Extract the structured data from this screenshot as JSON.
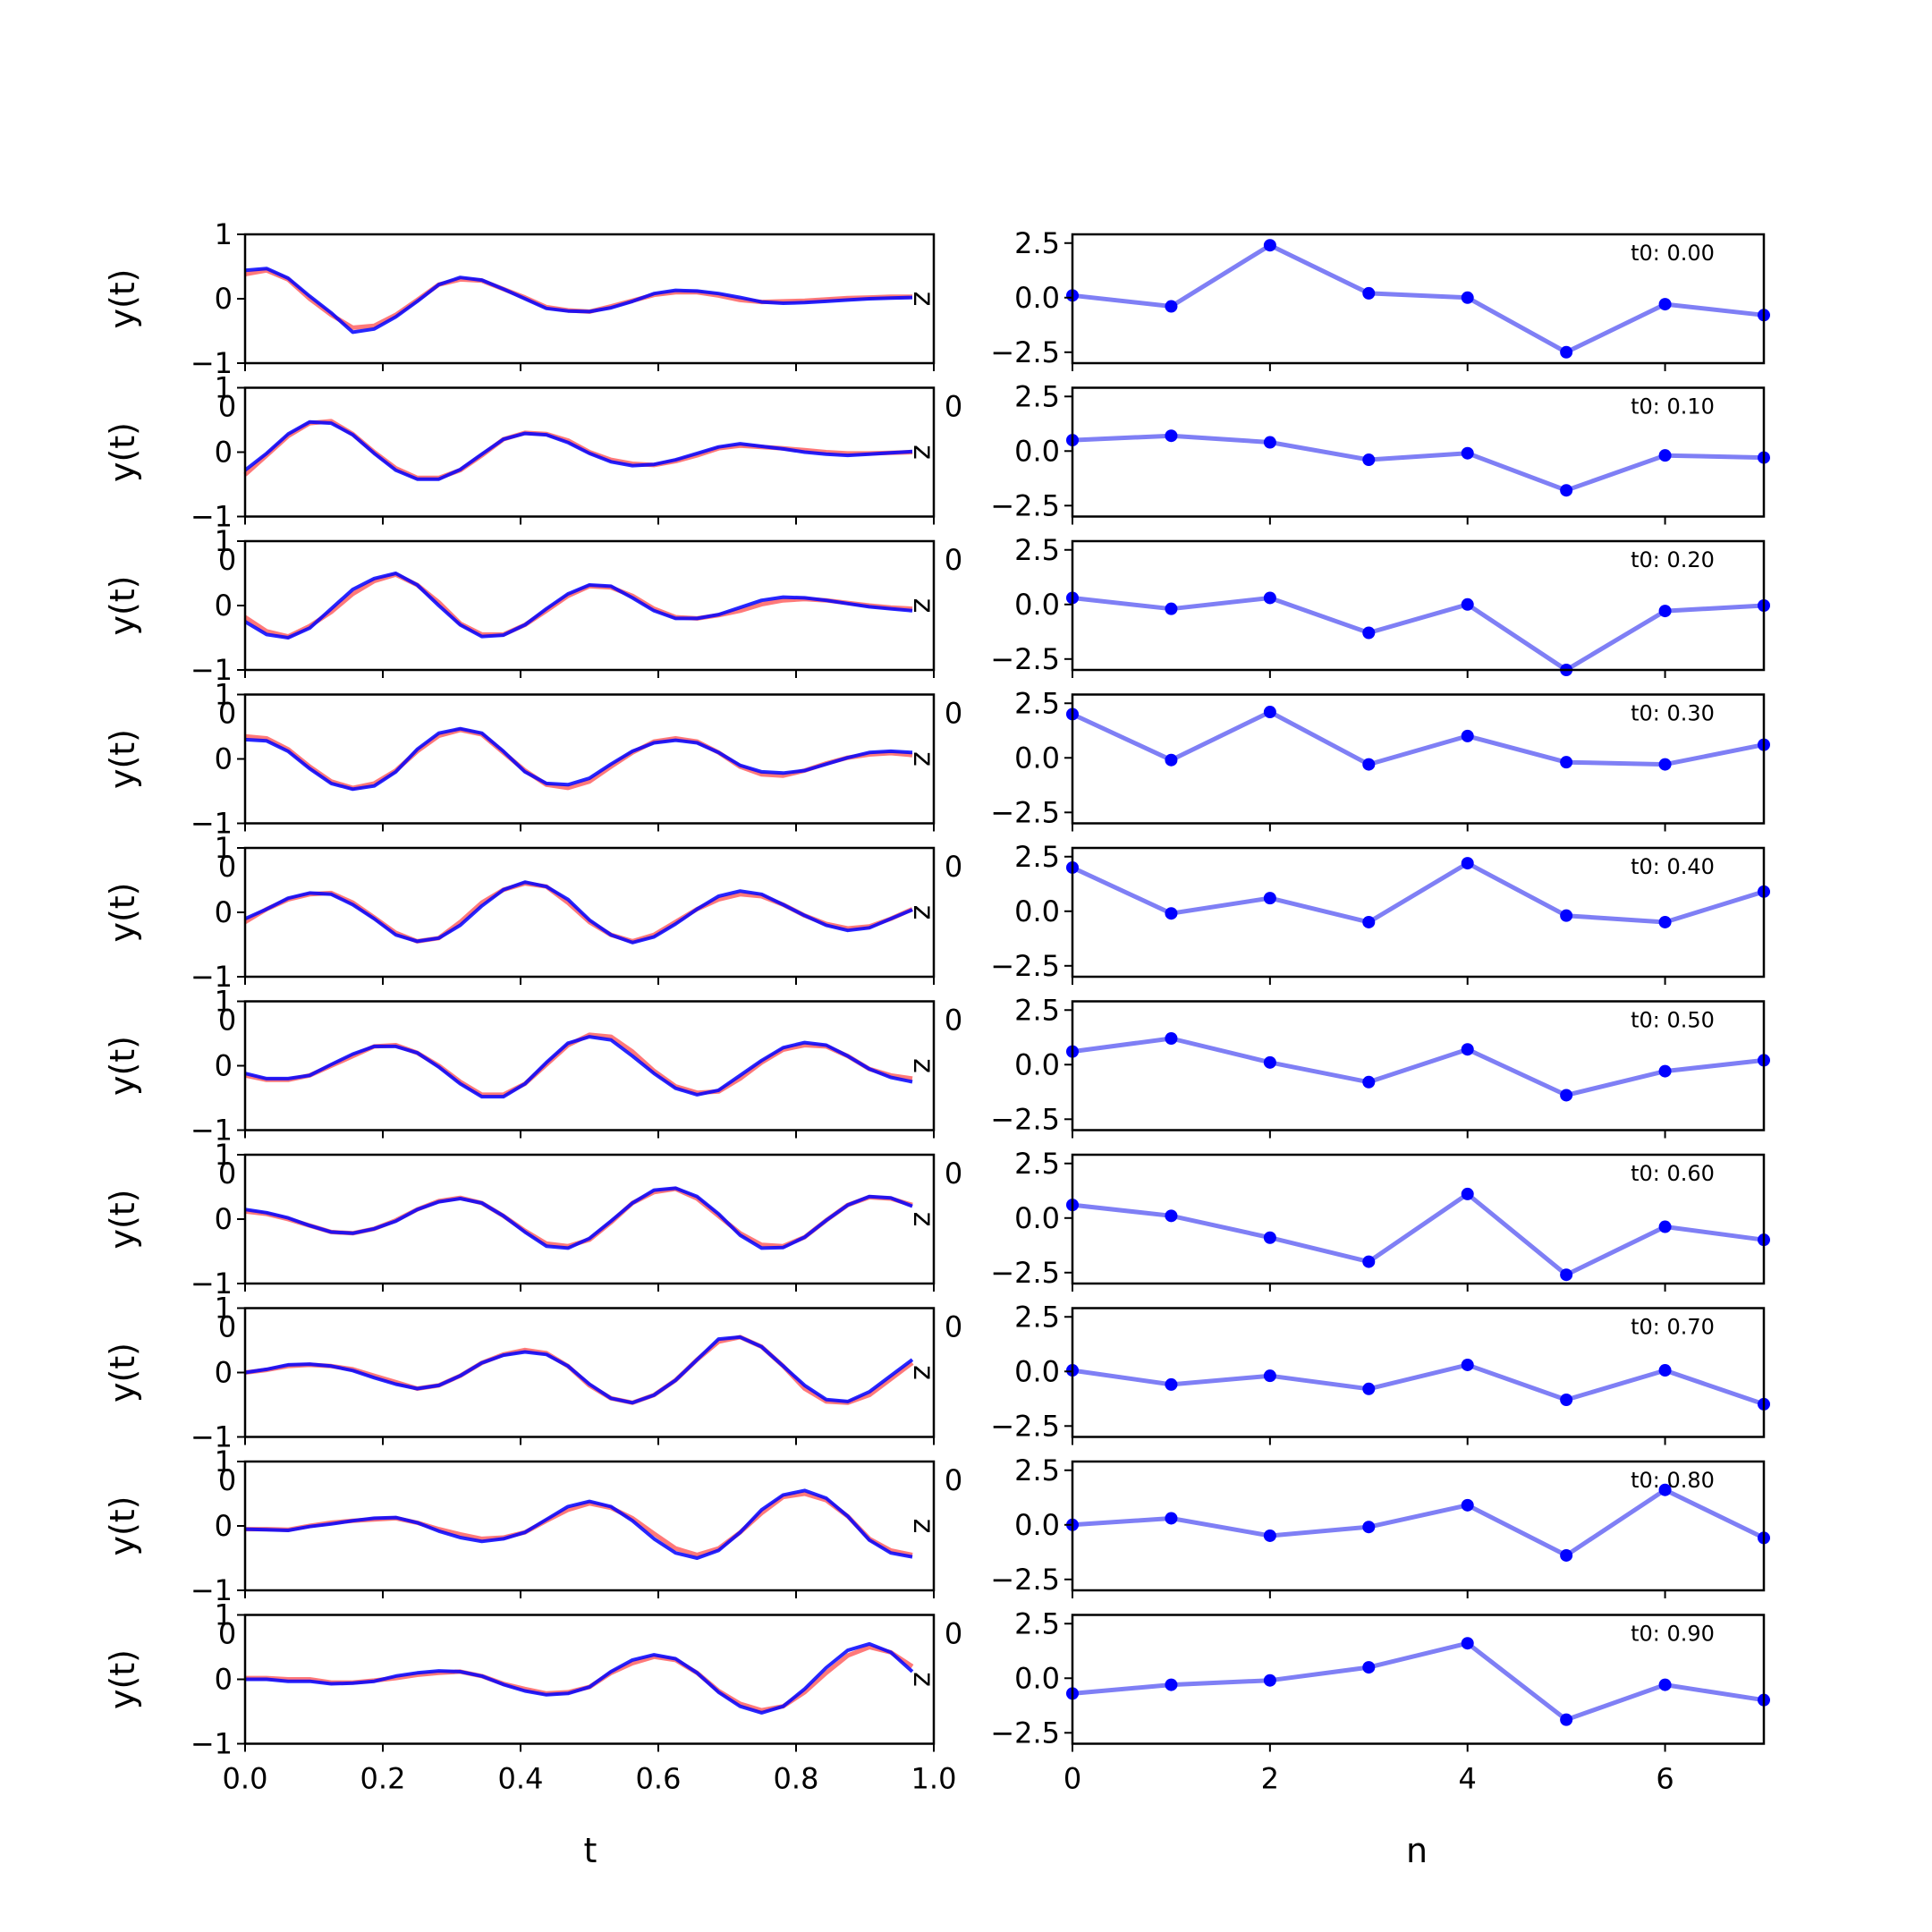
{
  "chart_data": [
    {
      "type": "line",
      "xlabel": "t",
      "ylabel": "y(t)",
      "xlim": [
        0,
        1
      ],
      "ylim": [
        -1,
        1
      ],
      "x_ticks": [
        "0.0",
        "0.2",
        "0.4",
        "0.6",
        "0.8",
        "1.0"
      ],
      "y_ticks": [
        "−1",
        "0",
        "1"
      ],
      "overlap_tick_label": "0",
      "right_edge_label": "z",
      "grid": false,
      "colors": {
        "true": "#ff6a6a",
        "reconstruction": "#0000ff"
      },
      "x": [
        0.0,
        0.0313,
        0.0625,
        0.0938,
        0.125,
        0.1563,
        0.1875,
        0.2188,
        0.25,
        0.2813,
        0.3125,
        0.3438,
        0.375,
        0.4063,
        0.4375,
        0.4688,
        0.5,
        0.5313,
        0.5625,
        0.5938,
        0.625,
        0.6563,
        0.6875,
        0.7188,
        0.75,
        0.7813,
        0.8125,
        0.8438,
        0.875,
        0.9063,
        0.9375,
        0.9688
      ],
      "panels": [
        {
          "true": [
            0.38,
            0.44,
            0.3,
            0.0,
            -0.25,
            -0.45,
            -0.42,
            -0.25,
            -0.02,
            0.22,
            0.3,
            0.28,
            0.15,
            0.02,
            -0.13,
            -0.18,
            -0.2,
            -0.12,
            -0.03,
            0.06,
            0.1,
            0.1,
            0.05,
            -0.02,
            -0.05,
            -0.04,
            -0.03,
            -0.01,
            0.01,
            0.02,
            0.03,
            0.03
          ],
          "recon": [
            0.44,
            0.47,
            0.32,
            0.04,
            -0.22,
            -0.52,
            -0.47,
            -0.28,
            -0.04,
            0.22,
            0.33,
            0.29,
            0.15,
            0.0,
            -0.15,
            -0.19,
            -0.2,
            -0.14,
            -0.04,
            0.08,
            0.13,
            0.12,
            0.08,
            0.02,
            -0.05,
            -0.07,
            -0.06,
            -0.04,
            -0.02,
            0.0,
            0.01,
            0.02
          ]
        },
        {
          "true": [
            -0.35,
            -0.05,
            0.25,
            0.45,
            0.48,
            0.28,
            0.0,
            -0.25,
            -0.4,
            -0.4,
            -0.28,
            -0.05,
            0.2,
            0.3,
            0.28,
            0.18,
            0.0,
            -0.12,
            -0.18,
            -0.2,
            -0.14,
            -0.05,
            0.06,
            0.1,
            0.08,
            0.06,
            0.03,
            0.0,
            -0.02,
            -0.02,
            -0.01,
            0.0
          ],
          "recon": [
            -0.28,
            -0.02,
            0.28,
            0.47,
            0.45,
            0.27,
            -0.02,
            -0.28,
            -0.42,
            -0.42,
            -0.27,
            -0.03,
            0.2,
            0.29,
            0.27,
            0.15,
            -0.02,
            -0.15,
            -0.21,
            -0.19,
            -0.12,
            -0.02,
            0.08,
            0.13,
            0.09,
            0.05,
            0.0,
            -0.03,
            -0.05,
            -0.03,
            -0.01,
            0.01
          ]
        },
        {
          "true": [
            -0.18,
            -0.4,
            -0.48,
            -0.32,
            -0.1,
            0.18,
            0.38,
            0.48,
            0.32,
            0.05,
            -0.28,
            -0.45,
            -0.45,
            -0.3,
            -0.08,
            0.15,
            0.3,
            0.28,
            0.15,
            -0.05,
            -0.18,
            -0.2,
            -0.15,
            -0.08,
            0.02,
            0.08,
            0.1,
            0.08,
            0.04,
            0.0,
            -0.03,
            -0.05
          ],
          "recon": [
            -0.25,
            -0.45,
            -0.5,
            -0.35,
            -0.05,
            0.25,
            0.42,
            0.5,
            0.32,
            0.0,
            -0.3,
            -0.48,
            -0.46,
            -0.3,
            -0.05,
            0.18,
            0.32,
            0.3,
            0.12,
            -0.08,
            -0.2,
            -0.2,
            -0.14,
            -0.03,
            0.08,
            0.13,
            0.12,
            0.08,
            0.03,
            -0.02,
            -0.05,
            -0.08
          ]
        },
        {
          "true": [
            0.35,
            0.32,
            0.15,
            -0.12,
            -0.35,
            -0.45,
            -0.38,
            -0.18,
            0.12,
            0.36,
            0.45,
            0.38,
            0.1,
            -0.18,
            -0.4,
            -0.45,
            -0.35,
            -0.12,
            0.1,
            0.27,
            0.32,
            0.27,
            0.1,
            -0.12,
            -0.24,
            -0.26,
            -0.18,
            -0.07,
            0.02,
            0.07,
            0.09,
            0.06
          ],
          "recon": [
            0.3,
            0.28,
            0.12,
            -0.15,
            -0.38,
            -0.47,
            -0.42,
            -0.2,
            0.15,
            0.4,
            0.47,
            0.4,
            0.12,
            -0.2,
            -0.38,
            -0.4,
            -0.3,
            -0.08,
            0.12,
            0.25,
            0.29,
            0.25,
            0.1,
            -0.1,
            -0.2,
            -0.22,
            -0.18,
            -0.08,
            0.02,
            0.1,
            0.12,
            0.1
          ]
        },
        {
          "true": [
            -0.15,
            0.05,
            0.2,
            0.28,
            0.3,
            0.15,
            -0.08,
            -0.32,
            -0.45,
            -0.4,
            -0.15,
            0.15,
            0.35,
            0.45,
            0.4,
            0.15,
            -0.15,
            -0.35,
            -0.45,
            -0.35,
            -0.15,
            0.05,
            0.2,
            0.28,
            0.25,
            0.12,
            -0.05,
            -0.18,
            -0.25,
            -0.22,
            -0.1,
            0.05
          ],
          "recon": [
            -0.1,
            0.05,
            0.22,
            0.3,
            0.28,
            0.12,
            -0.1,
            -0.35,
            -0.45,
            -0.4,
            -0.2,
            0.1,
            0.35,
            0.47,
            0.4,
            0.2,
            -0.12,
            -0.35,
            -0.47,
            -0.38,
            -0.18,
            0.05,
            0.25,
            0.33,
            0.28,
            0.12,
            -0.05,
            -0.2,
            -0.28,
            -0.24,
            -0.1,
            0.04
          ]
        },
        {
          "true": [
            -0.15,
            -0.22,
            -0.22,
            -0.15,
            0.0,
            0.15,
            0.3,
            0.32,
            0.2,
            0.0,
            -0.25,
            -0.45,
            -0.45,
            -0.28,
            0.02,
            0.32,
            0.48,
            0.45,
            0.22,
            -0.08,
            -0.32,
            -0.42,
            -0.4,
            -0.2,
            0.05,
            0.25,
            0.32,
            0.3,
            0.15,
            -0.05,
            -0.15,
            -0.2
          ],
          "recon": [
            -0.12,
            -0.2,
            -0.2,
            -0.15,
            0.02,
            0.18,
            0.3,
            0.3,
            0.2,
            -0.02,
            -0.28,
            -0.48,
            -0.48,
            -0.28,
            0.05,
            0.35,
            0.45,
            0.4,
            0.15,
            -0.12,
            -0.35,
            -0.45,
            -0.38,
            -0.15,
            0.08,
            0.28,
            0.36,
            0.32,
            0.15,
            -0.05,
            -0.18,
            -0.25
          ]
        },
        {
          "true": [
            0.12,
            0.08,
            0.0,
            -0.1,
            -0.2,
            -0.22,
            -0.15,
            -0.02,
            0.15,
            0.28,
            0.33,
            0.25,
            0.05,
            -0.18,
            -0.38,
            -0.42,
            -0.32,
            -0.05,
            0.25,
            0.42,
            0.47,
            0.32,
            0.05,
            -0.22,
            -0.4,
            -0.42,
            -0.28,
            -0.02,
            0.22,
            0.34,
            0.32,
            0.22
          ],
          "recon": [
            0.15,
            0.1,
            0.02,
            -0.1,
            -0.2,
            -0.22,
            -0.15,
            -0.03,
            0.15,
            0.27,
            0.32,
            0.25,
            0.05,
            -0.2,
            -0.42,
            -0.45,
            -0.3,
            -0.03,
            0.25,
            0.45,
            0.48,
            0.35,
            0.08,
            -0.25,
            -0.45,
            -0.44,
            -0.28,
            -0.02,
            0.22,
            0.35,
            0.33,
            0.2
          ]
        },
        {
          "true": [
            0.0,
            0.04,
            0.1,
            0.12,
            0.1,
            0.05,
            -0.05,
            -0.15,
            -0.25,
            -0.2,
            -0.05,
            0.15,
            0.28,
            0.35,
            0.3,
            0.1,
            -0.2,
            -0.4,
            -0.47,
            -0.35,
            -0.12,
            0.2,
            0.48,
            0.55,
            0.4,
            0.1,
            -0.25,
            -0.45,
            -0.47,
            -0.35,
            -0.1,
            0.15
          ],
          "recon": [
            0.0,
            0.05,
            0.12,
            0.13,
            0.1,
            0.03,
            -0.08,
            -0.18,
            -0.25,
            -0.2,
            -0.05,
            0.15,
            0.27,
            0.32,
            0.28,
            0.1,
            -0.18,
            -0.4,
            -0.47,
            -0.35,
            -0.12,
            0.2,
            0.52,
            0.55,
            0.4,
            0.1,
            -0.2,
            -0.42,
            -0.45,
            -0.3,
            -0.05,
            0.2
          ]
        },
        {
          "true": [
            -0.05,
            -0.05,
            -0.06,
            0.0,
            0.05,
            0.08,
            0.1,
            0.12,
            0.05,
            -0.05,
            -0.13,
            -0.2,
            -0.18,
            -0.1,
            0.08,
            0.25,
            0.35,
            0.28,
            0.12,
            -0.12,
            -0.35,
            -0.45,
            -0.35,
            -0.1,
            0.2,
            0.45,
            0.5,
            0.4,
            0.15,
            -0.2,
            -0.38,
            -0.45
          ],
          "recon": [
            -0.05,
            -0.06,
            -0.07,
            -0.01,
            0.03,
            0.08,
            0.12,
            0.13,
            0.05,
            -0.08,
            -0.18,
            -0.24,
            -0.2,
            -0.1,
            0.1,
            0.3,
            0.38,
            0.3,
            0.08,
            -0.2,
            -0.42,
            -0.5,
            -0.38,
            -0.1,
            0.25,
            0.48,
            0.55,
            0.43,
            0.15,
            -0.22,
            -0.42,
            -0.48
          ]
        },
        {
          "true": [
            0.02,
            0.02,
            0.0,
            0.0,
            -0.05,
            -0.05,
            -0.02,
            0.02,
            0.07,
            0.1,
            0.12,
            0.05,
            -0.07,
            -0.15,
            -0.22,
            -0.2,
            -0.12,
            0.1,
            0.25,
            0.35,
            0.3,
            0.1,
            -0.18,
            -0.38,
            -0.48,
            -0.42,
            -0.2,
            0.1,
            0.37,
            0.5,
            0.42,
            0.2
          ],
          "recon": [
            0.0,
            0.0,
            -0.03,
            -0.03,
            -0.07,
            -0.06,
            -0.03,
            0.05,
            0.1,
            0.13,
            0.12,
            0.05,
            -0.08,
            -0.18,
            -0.24,
            -0.22,
            -0.12,
            0.12,
            0.3,
            0.38,
            0.32,
            0.1,
            -0.2,
            -0.42,
            -0.52,
            -0.42,
            -0.15,
            0.18,
            0.45,
            0.55,
            0.42,
            0.12
          ]
        }
      ]
    },
    {
      "type": "line",
      "xlabel": "n",
      "ylabel": "",
      "xlim": [
        0,
        7
      ],
      "ylim": [
        -3,
        2.9
      ],
      "x_ticks": [
        "0",
        "2",
        "4",
        "6"
      ],
      "y_ticks": [
        "−2.5",
        "0.0",
        "2.5"
      ],
      "grid": false,
      "colors": {
        "line": "#7f7ff5",
        "marker": "#0000ff"
      },
      "x": [
        0,
        1,
        2,
        3,
        4,
        5,
        6,
        7
      ],
      "panels": [
        {
          "label": "t0: 0.00",
          "values": [
            0.1,
            -0.4,
            2.4,
            0.2,
            0.0,
            -2.5,
            -0.3,
            -0.8
          ]
        },
        {
          "label": "t0: 0.10",
          "values": [
            0.5,
            0.7,
            0.4,
            -0.4,
            -0.1,
            -1.8,
            -0.2,
            -0.3
          ]
        },
        {
          "label": "t0: 0.20",
          "values": [
            0.3,
            -0.2,
            0.3,
            -1.3,
            0.0,
            -3.0,
            -0.3,
            -0.05
          ]
        },
        {
          "label": "t0: 0.30",
          "values": [
            2.0,
            -0.1,
            2.1,
            -0.3,
            1.0,
            -0.2,
            -0.3,
            0.6
          ]
        },
        {
          "label": "t0: 0.40",
          "values": [
            2.0,
            -0.1,
            0.6,
            -0.5,
            2.2,
            -0.2,
            -0.5,
            0.9
          ]
        },
        {
          "label": "t0: 0.50",
          "values": [
            0.6,
            1.2,
            0.1,
            -0.8,
            0.7,
            -1.4,
            -0.3,
            0.2
          ]
        },
        {
          "label": "t0: 0.60",
          "values": [
            0.6,
            0.1,
            -0.9,
            -2.0,
            1.1,
            -2.6,
            -0.4,
            -1.0
          ]
        },
        {
          "label": "t0: 0.70",
          "values": [
            0.05,
            -0.6,
            -0.2,
            -0.8,
            0.3,
            -1.3,
            0.05,
            -1.5
          ]
        },
        {
          "label": "t0: 0.80",
          "values": [
            0.0,
            0.3,
            -0.5,
            -0.1,
            0.9,
            -1.4,
            1.6,
            -0.6
          ]
        },
        {
          "label": "t0: 0.90",
          "values": [
            -0.7,
            -0.3,
            -0.1,
            0.5,
            1.6,
            -1.9,
            -0.3,
            -1.0
          ]
        }
      ]
    }
  ]
}
